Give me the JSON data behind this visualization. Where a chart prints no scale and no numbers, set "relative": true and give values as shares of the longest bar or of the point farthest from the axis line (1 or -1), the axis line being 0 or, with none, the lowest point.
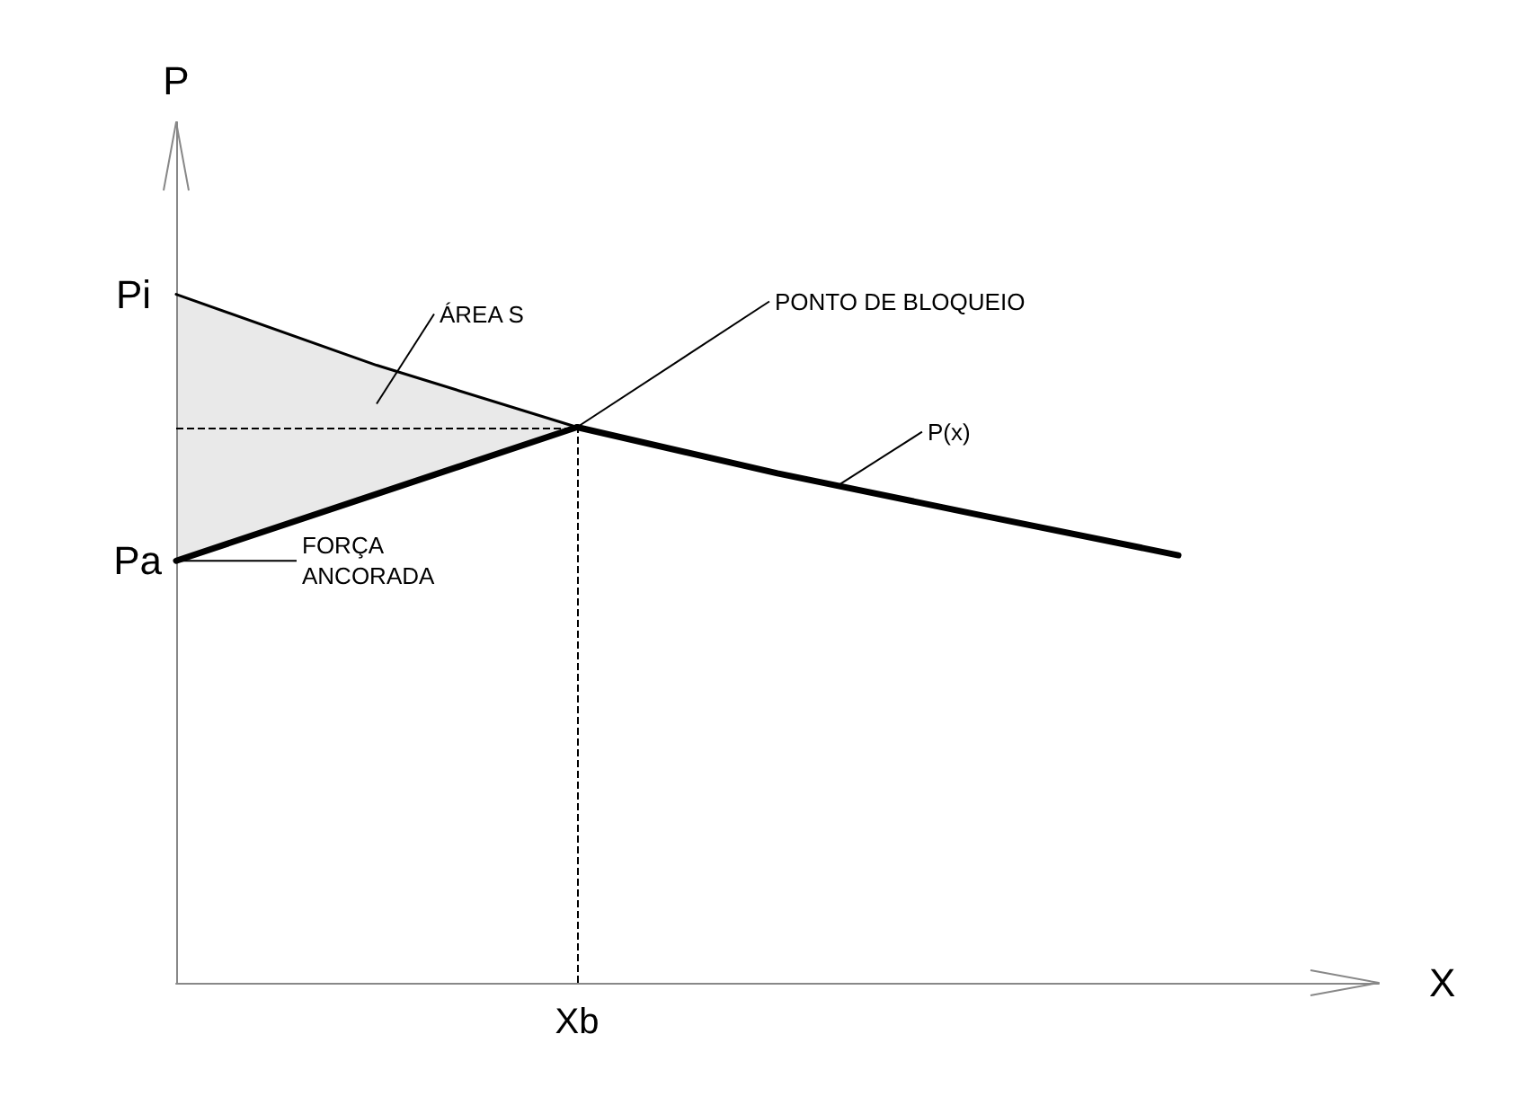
{
  "chart_data": {
    "type": "line",
    "relative": true,
    "xlabel": "X",
    "ylabel": "P",
    "grid": false,
    "marker": "none",
    "categories": [
      null,
      null,
      null,
      null,
      null,
      null,
      null
    ],
    "series": [
      {
        "color": "#000000",
        "values": [
          1,
          0.897,
          0.807,
          null,
          null,
          null,
          null
        ],
        "lower": [
          0.613,
          0.71,
          0.807,
          null,
          null,
          null,
          null
        ],
        "upper": [
          1,
          0.897,
          0.807,
          null,
          null,
          null,
          null
        ]
      },
      {
        "color": "#000000",
        "values": [
          0.613,
          0.71,
          0.807,
          null,
          null,
          null,
          null
        ]
      },
      {
        "color": "#000000",
        "values": [
          null,
          null,
          0.807,
          0.74,
          0.68,
          0.621,
          null
        ]
      }
    ],
    "ref_lines": [
      {
        "axis": "y",
        "value": 0.807,
        "line_style": "dashed"
      },
      {
        "axis": "x",
        "label": "Xb",
        "line_style": "dashed"
      }
    ],
    "annotations": [
      "Pi",
      "Pa",
      "ÁREA S",
      "PONTO DE BLOQUEIO",
      "P(x)",
      "FORÇA ANCORADA"
    ]
  }
}
